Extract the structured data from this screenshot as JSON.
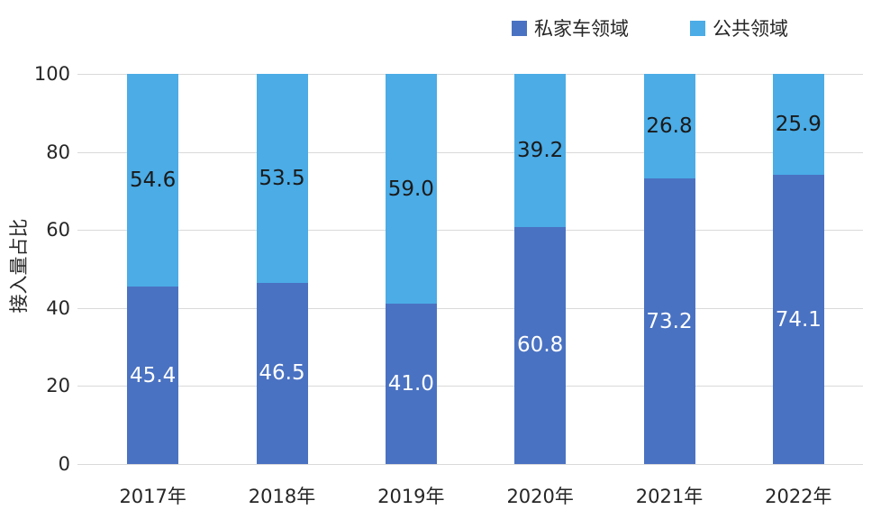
{
  "chart_data": {
    "type": "bar",
    "stacked": true,
    "categories": [
      "2017年",
      "2018年",
      "2019年",
      "2020年",
      "2021年",
      "2022年"
    ],
    "series": [
      {
        "name": "私家车领域",
        "color": "#4A72C2",
        "label_color": "#ffffff",
        "values": [
          45.4,
          46.5,
          41.0,
          60.8,
          73.2,
          74.1
        ]
      },
      {
        "name": "公共领域",
        "color": "#4BACE6",
        "label_color": "#1a1a1a",
        "values": [
          54.6,
          53.5,
          59.0,
          39.2,
          26.8,
          25.9
        ]
      }
    ],
    "title": "",
    "xlabel": "",
    "ylabel": "接入量占比",
    "ylim": [
      0,
      100
    ],
    "yticks": [
      0,
      20,
      40,
      60,
      80,
      100
    ],
    "grid": true,
    "legend_position": "top-right"
  },
  "colors": {
    "gridline": "#d9d9d9",
    "axis_text": "#262626",
    "background": "#ffffff"
  }
}
